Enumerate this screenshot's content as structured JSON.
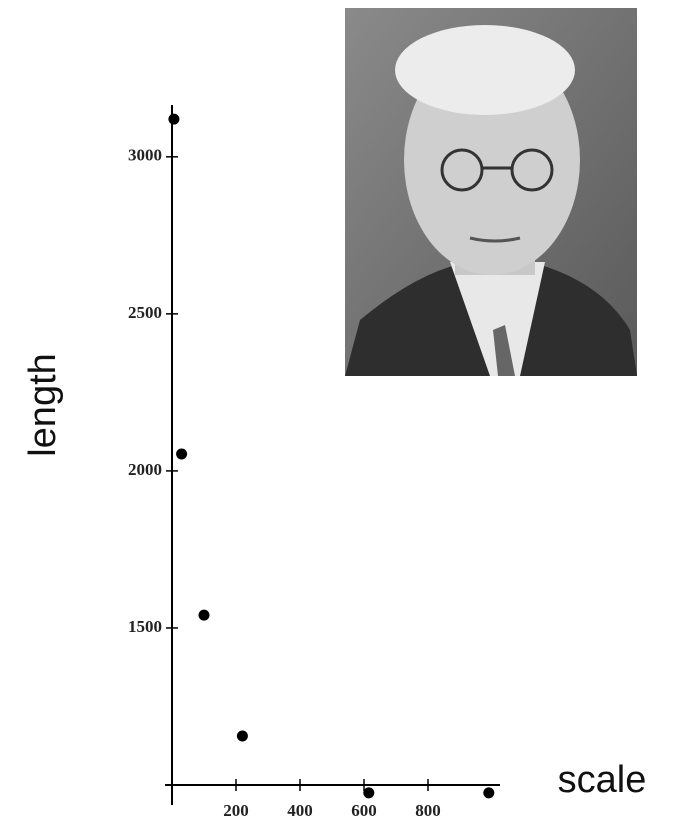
{
  "chart_data": {
    "type": "scatter",
    "x_label": "scale",
    "y_label": "length",
    "x": [
      6,
      30,
      100,
      220,
      615,
      990
    ],
    "values": [
      3120,
      2054,
      1541,
      1156,
      975,
      975
    ],
    "color": "#000000",
    "xlim": [
      0,
      1000
    ],
    "xticks": [
      200,
      400,
      600,
      800
    ],
    "ylim": [
      1000,
      3200
    ],
    "yticks": [
      1500,
      2000,
      2500,
      3000
    ]
  }
}
